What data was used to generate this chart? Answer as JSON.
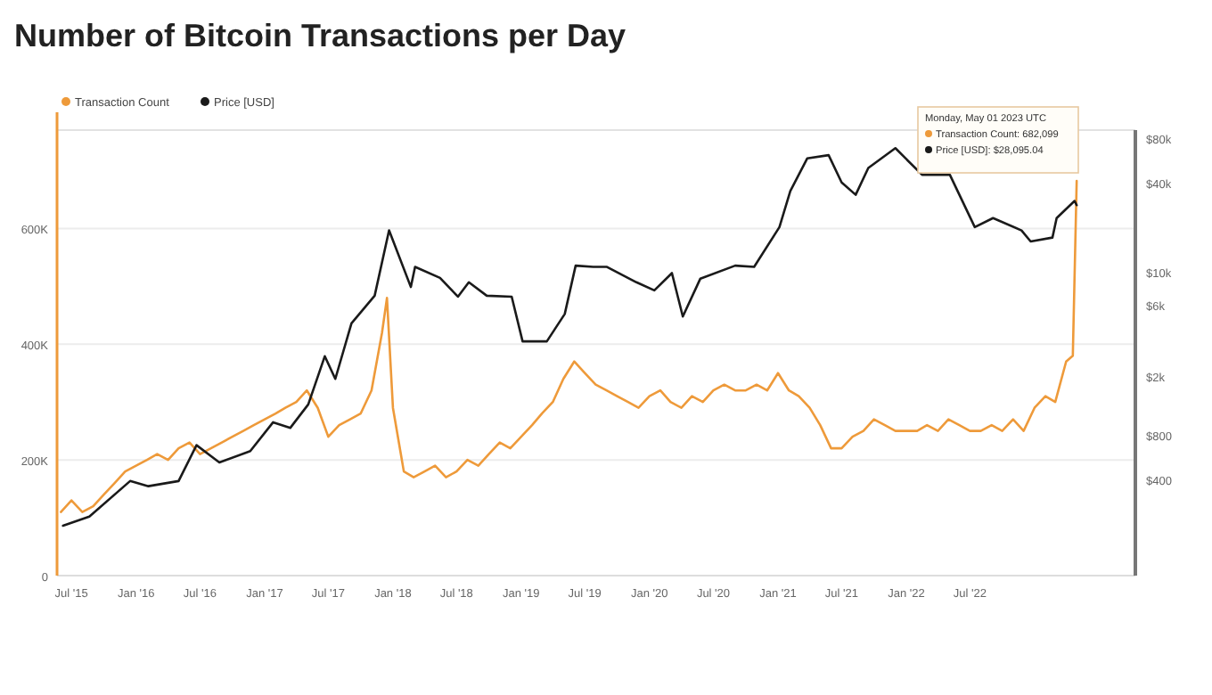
{
  "chart_data": {
    "type": "line",
    "title": "Number of Bitcoin Transactions per Day",
    "xlim": [
      "2015-05-21",
      "2023-10-15"
    ],
    "xticks": [
      {
        "value": "2015-07-01",
        "label": "Jul '15"
      },
      {
        "value": "2016-01-01",
        "label": "Jan '16"
      },
      {
        "value": "2016-07-01",
        "label": "Jul '16"
      },
      {
        "value": "2017-01-01",
        "label": "Jan '17"
      },
      {
        "value": "2017-07-01",
        "label": "Jul '17"
      },
      {
        "value": "2018-01-01",
        "label": "Jan '18"
      },
      {
        "value": "2018-07-01",
        "label": "Jul '18"
      },
      {
        "value": "2019-01-01",
        "label": "Jan '19"
      },
      {
        "value": "2019-07-01",
        "label": "Jul '19"
      },
      {
        "value": "2020-01-01",
        "label": "Jan '20"
      },
      {
        "value": "2020-07-01",
        "label": "Jul '20"
      },
      {
        "value": "2021-01-01",
        "label": "Jan '21"
      },
      {
        "value": "2021-07-01",
        "label": "Jul '21"
      },
      {
        "value": "2022-01-01",
        "label": "Jan '22"
      },
      {
        "value": "2022-07-01",
        "label": "Jul '22"
      }
    ],
    "ylim": [
      0,
      770000
    ],
    "yticks": [
      0,
      {
        "value": 200000,
        "label": "200K"
      },
      {
        "value": 400000,
        "label": "400K"
      },
      {
        "value": 600000,
        "label": "600K"
      }
    ],
    "y2lim": [
      90,
      90000
    ],
    "y2ticks": [
      {
        "value": 400,
        "label": "$400"
      },
      {
        "value": 800,
        "label": "$800"
      },
      {
        "value": 2000,
        "label": "$2k"
      },
      {
        "value": 6000,
        "label": "$6k"
      },
      {
        "value": 10000,
        "label": "$10k"
      },
      {
        "value": 40000,
        "label": "$40k"
      },
      {
        "value": 80000,
        "label": "$80k"
      }
    ],
    "log": "y2",
    "grid": "y",
    "legend": "top left",
    "marker": "none",
    "annotations": [
      "Monday, May 01 2023 UTC",
      "Transaction Count: 682,099",
      "Price [USD]: $28,095.04"
    ],
    "series": [
      {
        "name": "Transaction Count",
        "color": "#ee9a3a",
        "x": [
          "2015-06-01",
          "2015-07-01",
          "2015-08-01",
          "2015-09-01",
          "2015-10-01",
          "2015-11-01",
          "2015-12-01",
          "2016-01-01",
          "2016-02-01",
          "2016-03-01",
          "2016-04-01",
          "2016-05-01",
          "2016-06-01",
          "2016-07-01",
          "2016-08-01",
          "2016-09-01",
          "2016-10-01",
          "2016-11-01",
          "2016-12-01",
          "2017-01-01",
          "2017-02-01",
          "2017-03-01",
          "2017-04-01",
          "2017-05-01",
          "2017-06-01",
          "2017-07-01",
          "2017-08-01",
          "2017-09-01",
          "2017-10-01",
          "2017-11-01",
          "2017-12-01",
          "2017-12-15",
          "2018-01-01",
          "2018-02-01",
          "2018-03-01",
          "2018-04-01",
          "2018-05-01",
          "2018-06-01",
          "2018-07-01",
          "2018-08-01",
          "2018-09-01",
          "2018-10-01",
          "2018-11-01",
          "2018-12-01",
          "2019-01-01",
          "2019-02-01",
          "2019-03-01",
          "2019-04-01",
          "2019-05-01",
          "2019-06-01",
          "2019-07-01",
          "2019-08-01",
          "2019-09-01",
          "2019-10-01",
          "2019-11-01",
          "2019-12-01",
          "2020-01-01",
          "2020-02-01",
          "2020-03-01",
          "2020-04-01",
          "2020-05-01",
          "2020-06-01",
          "2020-07-01",
          "2020-08-01",
          "2020-09-01",
          "2020-10-01",
          "2020-11-01",
          "2020-12-01",
          "2021-01-01",
          "2021-02-01",
          "2021-03-01",
          "2021-04-01",
          "2021-05-01",
          "2021-06-01",
          "2021-07-01",
          "2021-08-01",
          "2021-09-01",
          "2021-10-01",
          "2021-11-01",
          "2021-12-01",
          "2022-01-01",
          "2022-02-01",
          "2022-03-01",
          "2022-04-01",
          "2022-05-01",
          "2022-06-01",
          "2022-07-01",
          "2022-08-01",
          "2022-09-01",
          "2022-10-01",
          "2022-11-01",
          "2022-12-01",
          "2023-01-01",
          "2023-02-01",
          "2023-03-01",
          "2023-04-01",
          "2023-04-20",
          "2023-05-01"
        ],
        "values": [
          110000,
          130000,
          110000,
          120000,
          140000,
          160000,
          180000,
          190000,
          200000,
          210000,
          200000,
          220000,
          230000,
          210000,
          220000,
          230000,
          240000,
          250000,
          260000,
          270000,
          280000,
          290000,
          300000,
          320000,
          290000,
          240000,
          260000,
          270000,
          280000,
          320000,
          420000,
          480000,
          290000,
          180000,
          170000,
          180000,
          190000,
          170000,
          180000,
          200000,
          190000,
          210000,
          230000,
          220000,
          240000,
          260000,
          280000,
          300000,
          340000,
          370000,
          350000,
          330000,
          320000,
          310000,
          300000,
          290000,
          310000,
          320000,
          300000,
          290000,
          310000,
          300000,
          320000,
          330000,
          320000,
          320000,
          330000,
          320000,
          350000,
          320000,
          310000,
          290000,
          260000,
          220000,
          220000,
          240000,
          250000,
          270000,
          260000,
          250000,
          250000,
          250000,
          260000,
          250000,
          270000,
          260000,
          250000,
          250000,
          260000,
          250000,
          270000,
          250000,
          290000,
          310000,
          300000,
          370000,
          380000,
          682099
        ]
      },
      {
        "name": "Price [USD]",
        "color": "#1a1a1a",
        "axis": "y2",
        "x": [
          "2015-06-07",
          "2015-08-21",
          "2015-12-15",
          "2016-02-05",
          "2016-05-01",
          "2016-06-21",
          "2016-08-25",
          "2016-11-21",
          "2017-01-25",
          "2017-03-15",
          "2017-05-05",
          "2017-06-21",
          "2017-07-21",
          "2017-09-05",
          "2017-11-10",
          "2017-12-21",
          "2018-02-21",
          "2018-03-05",
          "2018-05-15",
          "2018-07-05",
          "2018-08-05",
          "2018-09-25",
          "2018-12-05",
          "2019-01-05",
          "2019-03-15",
          "2019-05-05",
          "2019-06-05",
          "2019-07-25",
          "2019-09-01",
          "2019-11-25",
          "2020-01-15",
          "2020-03-05",
          "2020-04-05",
          "2020-05-25",
          "2020-09-01",
          "2020-10-25",
          "2021-01-05",
          "2021-02-05",
          "2021-03-25",
          "2021-05-25",
          "2021-07-01",
          "2021-08-10",
          "2021-09-15",
          "2021-12-01",
          "2022-02-15",
          "2022-05-05",
          "2022-07-15",
          "2022-09-05",
          "2022-11-25",
          "2022-12-21",
          "2023-02-21",
          "2023-03-05",
          "2023-04-25",
          "2023-05-01"
        ],
        "values": [
          195,
          225,
          390,
          360,
          390,
          680,
          520,
          620,
          970,
          890,
          1280,
          2700,
          1900,
          4500,
          6900,
          19000,
          7900,
          10800,
          9100,
          6800,
          8500,
          6900,
          6800,
          3400,
          3400,
          5200,
          11000,
          10800,
          10800,
          8500,
          7500,
          9800,
          5000,
          9000,
          11000,
          10800,
          20000,
          35000,
          58000,
          61000,
          40000,
          33000,
          50000,
          68000,
          45000,
          45000,
          20000,
          23000,
          19000,
          16000,
          17000,
          23000,
          30000,
          28095.04
        ]
      }
    ]
  }
}
